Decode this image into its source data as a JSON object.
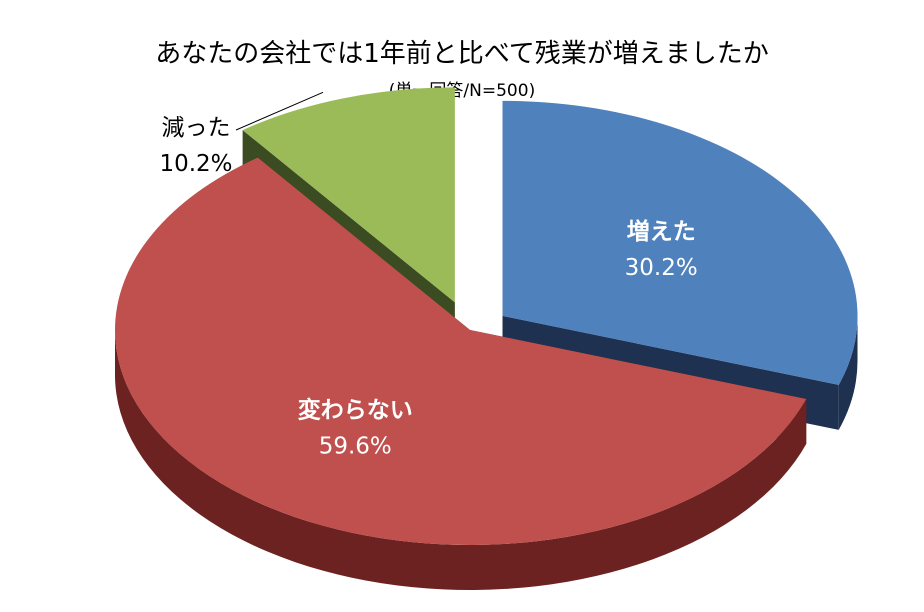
{
  "chart_data": {
    "type": "pie",
    "title": "あなたの会社では1年前と比べて残業が増えましたか",
    "subtitle": "(単一回答/N=500)",
    "slices": [
      {
        "label": "増えた",
        "value": 30.2,
        "value_label": "30.2%",
        "color": "#4f81bd",
        "side_color": "#1f3150",
        "label_position": "inside"
      },
      {
        "label": "変わらない",
        "value": 59.6,
        "value_label": "59.6%",
        "color": "#c0504d",
        "side_color": "#6b2220",
        "label_position": "inside"
      },
      {
        "label": "減った",
        "value": 10.2,
        "value_label": "10.2%",
        "color": "#9bbb59",
        "side_color": "#3b4b22",
        "label_position": "outside"
      }
    ],
    "style": "3d-exploded"
  }
}
